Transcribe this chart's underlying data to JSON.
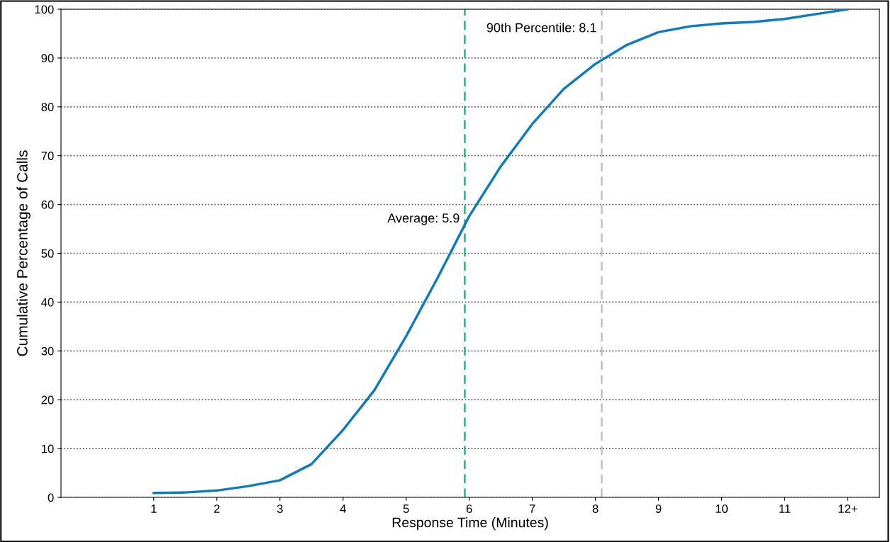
{
  "chart_data": {
    "type": "line",
    "xlabel": "Response Time (Minutes)",
    "ylabel": "Cumulative Percentage of Calls",
    "x": [
      1,
      1.5,
      2,
      2.5,
      3,
      3.5,
      4,
      4.5,
      5,
      5.5,
      6,
      6.5,
      7,
      7.5,
      8,
      8.5,
      9,
      9.5,
      10,
      10.5,
      11,
      11.5,
      12
    ],
    "series": [
      {
        "color": "#0e7bbf",
        "values": [
          0.9,
          1.0,
          1.4,
          2.3,
          3.5,
          6.8,
          13.8,
          22,
          33,
          45,
          57.6,
          67.8,
          76.5,
          83.7,
          88.8,
          92.7,
          95.3,
          96.5,
          97.1,
          97.4,
          98,
          99,
          100
        ]
      }
    ],
    "xlim": [
      -0.47,
      12.5
    ],
    "xticks": [
      1,
      2,
      3,
      4,
      5,
      6,
      7,
      8,
      9,
      10,
      11,
      {
        "value": 12,
        "label": "12+"
      }
    ],
    "ylim": [
      0,
      100
    ],
    "yticks": [
      0,
      10,
      20,
      30,
      40,
      50,
      60,
      70,
      80,
      90,
      100
    ],
    "grid": "y",
    "marker": "none",
    "line_style": "solid",
    "ref_lines": [
      {
        "axis": "x",
        "value": 5.93,
        "label": "Average: 5.9",
        "color": "#2bb08a",
        "line_style": "dashed"
      },
      {
        "axis": "x",
        "value": 8.1,
        "label": "90th Percentile: 8.1",
        "color": "#c0c0c0",
        "line_style": "dashed"
      }
    ]
  }
}
